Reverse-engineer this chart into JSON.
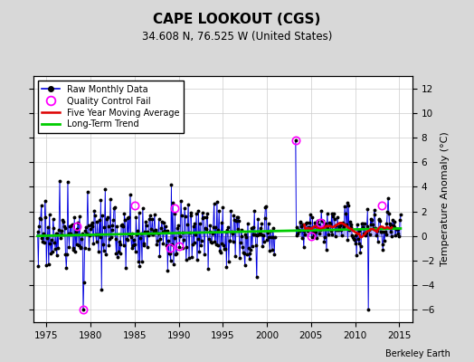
{
  "title": "CAPE LOOKOUT (CGS)",
  "subtitle": "34.608 N, 76.525 W (United States)",
  "ylabel": "Temperature Anomaly (°C)",
  "credit": "Berkeley Earth",
  "xlim": [
    1973.5,
    2016.5
  ],
  "ylim": [
    -7,
    13
  ],
  "yticks": [
    -6,
    -4,
    -2,
    0,
    2,
    4,
    6,
    8,
    10,
    12
  ],
  "xticks": [
    1975,
    1980,
    1985,
    1990,
    1995,
    2000,
    2005,
    2010,
    2015
  ],
  "bg_color": "#d8d8d8",
  "plot_bg_color": "#ffffff",
  "line_color": "#0000dd",
  "stem_color": "#8888ff",
  "ma_color": "#dd0000",
  "trend_color": "#00cc00",
  "qc_color": "#ff00ff",
  "seed": 17,
  "segment1_start_year": 1974,
  "segment1_n_months": 324,
  "segment2_start_year": 2003.25,
  "segment2_n_months": 144,
  "gap_start": 2001.0,
  "gap_end": 2003.25
}
